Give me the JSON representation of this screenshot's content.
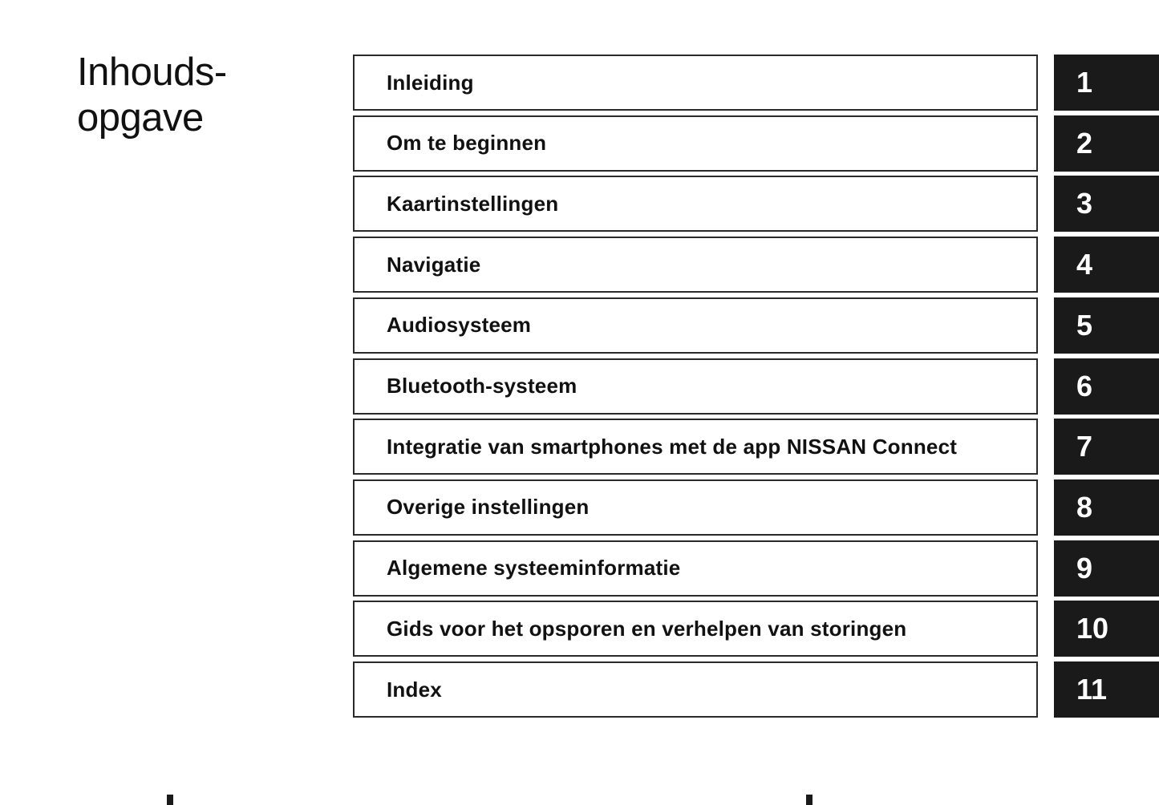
{
  "page_title_line1": "Inhouds-",
  "page_title_line2": "opgave",
  "chapters": [
    {
      "label": "Inleiding",
      "number": "1"
    },
    {
      "label": "Om te beginnen",
      "number": "2"
    },
    {
      "label": "Kaartinstellingen",
      "number": "3"
    },
    {
      "label": "Navigatie",
      "number": "4"
    },
    {
      "label": "Audiosysteem",
      "number": "5"
    },
    {
      "label": "Bluetooth-systeem",
      "number": "6"
    },
    {
      "label": "Integratie van smartphones met de app NISSAN Connect",
      "number": "7"
    },
    {
      "label": "Overige instellingen",
      "number": "8"
    },
    {
      "label": "Algemene systeeminformatie",
      "number": "9"
    },
    {
      "label": "Gids voor het opsporen en verhelpen van storingen",
      "number": "10"
    },
    {
      "label": "Index",
      "number": "11"
    }
  ],
  "colors": {
    "tab_background": "#1a1a1a",
    "border": "#2a2a2a",
    "text": "#111111"
  }
}
